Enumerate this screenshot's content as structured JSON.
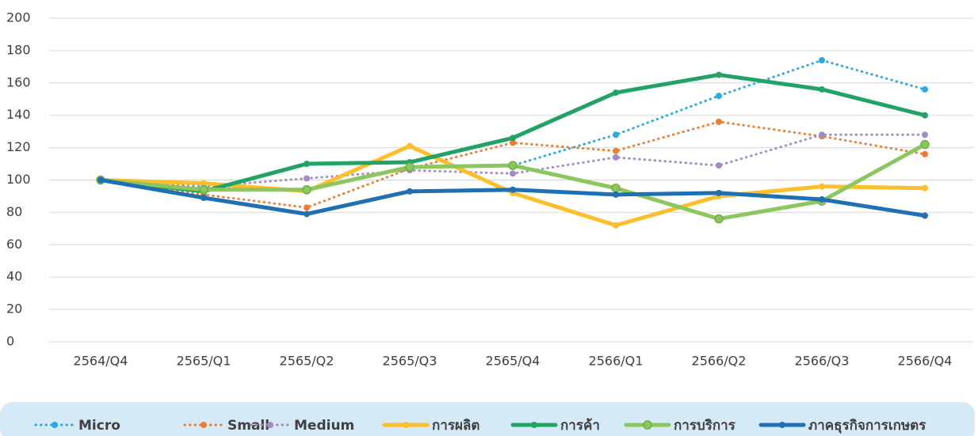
{
  "chart_data": {
    "type": "line",
    "categories": [
      "2564/Q4",
      "2565/Q1",
      "2565/Q2",
      "2565/Q3",
      "2565/Q4",
      "2566/Q1",
      "2566/Q2",
      "2566/Q3",
      "2566/Q4"
    ],
    "ylim": [
      0,
      200
    ],
    "yticks": [
      0,
      20,
      40,
      60,
      80,
      100,
      120,
      140,
      160,
      180,
      200
    ],
    "grid": true,
    "legend_position": "bottom",
    "series": [
      {
        "name": "Micro",
        "color": "#29abe2",
        "style": "dotted",
        "values": [
          100,
          95,
          94,
          108,
          109,
          128,
          152,
          174,
          156
        ]
      },
      {
        "name": "Small",
        "color": "#ed7d31",
        "style": "dotted",
        "values": [
          100,
          91,
          83,
          107,
          123,
          118,
          136,
          127,
          116
        ]
      },
      {
        "name": "Medium",
        "color": "#a58bc6",
        "style": "dotted",
        "values": [
          100,
          96,
          101,
          106,
          104,
          114,
          109,
          128,
          128
        ]
      },
      {
        "name": "การผลิต",
        "color": "#fbbf2c",
        "style": "solid",
        "values": [
          100,
          98,
          93,
          121,
          92,
          72,
          90,
          96,
          95
        ]
      },
      {
        "name": "การค้า",
        "color": "#21a366",
        "style": "solid",
        "values": [
          100,
          93,
          110,
          111,
          126,
          154,
          165,
          156,
          140
        ]
      },
      {
        "name": "การบริการ",
        "color": "#8cc65f",
        "style": "solid",
        "values": [
          100,
          94,
          94,
          108,
          109,
          95,
          76,
          87,
          122
        ]
      },
      {
        "name": "ภาคธุรกิจการเกษตร",
        "color": "#1f6fb4",
        "style": "solid",
        "values": [
          100,
          89,
          79,
          93,
          94,
          91,
          92,
          88,
          78
        ]
      }
    ]
  }
}
